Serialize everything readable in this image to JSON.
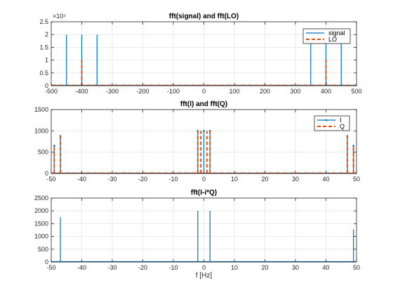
{
  "colors": {
    "series1": "#0072BD",
    "series2": "#D95319",
    "grid": "#E5E5E5",
    "axis": "#262626"
  },
  "chart_data": [
    {
      "type": "line",
      "title": "fft(signal) and fft(LO)",
      "xlim": [
        -500,
        500
      ],
      "ylim": [
        0,
        25000
      ],
      "xticks": [
        -500,
        -400,
        -300,
        -200,
        -100,
        0,
        100,
        200,
        300,
        400,
        500
      ],
      "yticks": [
        0,
        5000,
        10000,
        15000,
        20000,
        25000
      ],
      "ytick_labels": [
        "0",
        "0.5",
        "1",
        "1.5",
        "2",
        "2.5"
      ],
      "exponent_label": "×10⁴",
      "grid": true,
      "legend": "top-right",
      "series": [
        {
          "name": "signal",
          "style": "solid",
          "stems": [
            [
              -450,
              20000
            ],
            [
              -400,
              20000
            ],
            [
              -350,
              20000
            ],
            [
              350,
              20000
            ],
            [
              400,
              20000
            ],
            [
              450,
              20000
            ]
          ]
        },
        {
          "name": "LO",
          "style": "dashed",
          "stems": [
            [
              -400,
              10000
            ],
            [
              400,
              10000
            ]
          ]
        }
      ]
    },
    {
      "type": "line",
      "title": "fft(I) and fft(Q)",
      "xlim": [
        -50,
        50
      ],
      "ylim": [
        0,
        1500
      ],
      "xticks": [
        -50,
        -40,
        -30,
        -20,
        -10,
        0,
        10,
        20,
        30,
        40,
        50
      ],
      "yticks": [
        0,
        500,
        1000,
        1500
      ],
      "ytick_labels": [
        "0",
        "500",
        "1000",
        "1500"
      ],
      "grid": true,
      "legend": "top-right",
      "series": [
        {
          "name": "I",
          "style": "solid-marker",
          "stems": [
            [
              -49,
              650
            ],
            [
              -47,
              880
            ],
            [
              -2,
              1000
            ],
            [
              0,
              1000
            ],
            [
              2,
              1000
            ],
            [
              47,
              880
            ],
            [
              49,
              650
            ]
          ]
        },
        {
          "name": "Q",
          "style": "dashed",
          "stems": [
            [
              -49,
              650
            ],
            [
              -47,
              880
            ],
            [
              -2,
              1000
            ],
            [
              -1,
              1000
            ],
            [
              1,
              1000
            ],
            [
              2,
              1000
            ],
            [
              47,
              880
            ],
            [
              49,
              650
            ]
          ]
        }
      ]
    },
    {
      "type": "line",
      "title": "fft(I-i*Q)",
      "xlabel": "f [Hz]",
      "xlim": [
        -50,
        50
      ],
      "ylim": [
        0,
        2500
      ],
      "xticks": [
        -50,
        -40,
        -30,
        -20,
        -10,
        0,
        10,
        20,
        30,
        40,
        50
      ],
      "yticks": [
        0,
        500,
        1000,
        1500,
        2000,
        2500
      ],
      "ytick_labels": [
        "0",
        "500",
        "1000",
        "1500",
        "2000",
        "2500"
      ],
      "grid": true,
      "series": [
        {
          "name": "",
          "style": "solid",
          "stems": [
            [
              -47,
              1750
            ],
            [
              -2,
              2000
            ],
            [
              2,
              2000
            ],
            [
              49,
              1280
            ]
          ]
        }
      ]
    }
  ]
}
